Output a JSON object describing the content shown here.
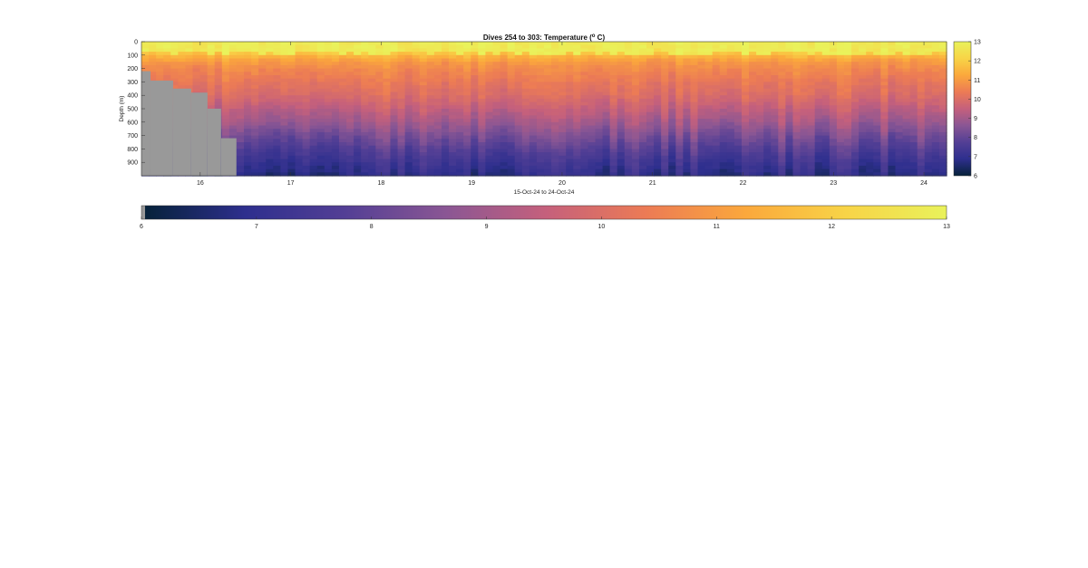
{
  "chart_data": {
    "type": "heatmap",
    "title": "Dives 254 to 303: Temperature (",
    "title_superscript": "o",
    "title_unit_tail": " C)",
    "xlabel": "15-Oct-24 to 24-Oct-24",
    "ylabel": "Depth (m)",
    "xlim": [
      15.35,
      24.25
    ],
    "ylim": [
      0,
      1000
    ],
    "y_reversed": true,
    "x_ticks": [
      "16",
      "17",
      "18",
      "19",
      "20",
      "21",
      "22",
      "23",
      "24"
    ],
    "x_tick_values": [
      16,
      17,
      18,
      19,
      20,
      21,
      22,
      23,
      24
    ],
    "y_ticks": [
      "0",
      "100",
      "200",
      "300",
      "400",
      "500",
      "600",
      "700",
      "800",
      "900"
    ],
    "y_tick_values": [
      0,
      100,
      200,
      300,
      400,
      500,
      600,
      700,
      800,
      900
    ],
    "colorbar": {
      "min": 6,
      "max": 13,
      "ticks": [
        "6",
        "7",
        "8",
        "9",
        "10",
        "11",
        "12",
        "13"
      ],
      "tick_values": [
        6,
        7,
        8,
        9,
        10,
        11,
        12,
        13
      ]
    },
    "colormap": [
      "#06223a",
      "#2e2f8e",
      "#533f95",
      "#8a5694",
      "#c5607c",
      "#ec7b55",
      "#fba83c",
      "#f8d447",
      "#e9f25b"
    ],
    "no_data_color": "#999999",
    "no_data_region": [
      {
        "x_start": 15.35,
        "x_end": 15.45,
        "depth_above": 220
      },
      {
        "x_start": 15.45,
        "x_end": 15.7,
        "depth_above": 290
      },
      {
        "x_start": 15.7,
        "x_end": 15.9,
        "depth_above": 350
      },
      {
        "x_start": 15.9,
        "x_end": 16.08,
        "depth_above": 380
      },
      {
        "x_start": 16.08,
        "x_end": 16.23,
        "depth_above": 500
      },
      {
        "x_start": 16.23,
        "x_end": 16.4,
        "depth_above": 720
      },
      {
        "x_start": 16.4,
        "x_end": 16.6,
        "depth_above": 1000
      }
    ],
    "temperature_profile": {
      "depth_m": [
        0,
        50,
        100,
        150,
        200,
        300,
        400,
        500,
        600,
        700,
        800,
        900,
        1000
      ],
      "temp_c": [
        12.9,
        12.6,
        11.6,
        11.0,
        10.7,
        10.3,
        10.0,
        9.5,
        9.0,
        8.4,
        7.8,
        7.3,
        6.9
      ]
    }
  }
}
